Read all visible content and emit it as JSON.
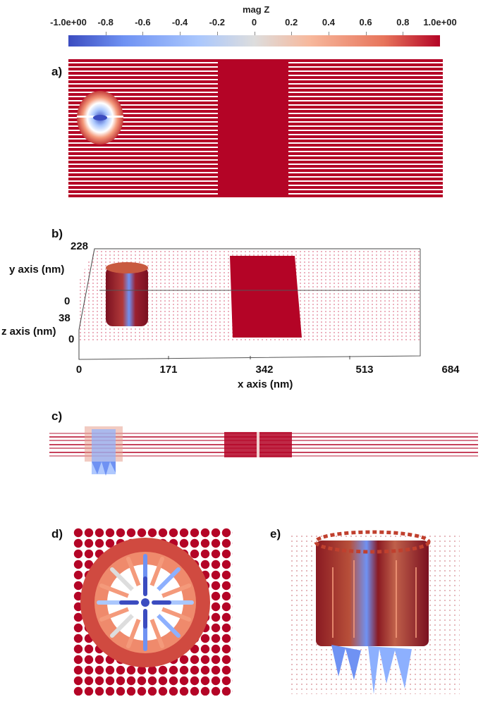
{
  "colorbar": {
    "title": "mag Z",
    "ticks": [
      "-1.0e+00",
      "-0.8",
      "-0.6",
      "-0.4",
      "-0.2",
      "0",
      "0.2",
      "0.4",
      "0.6",
      "0.8",
      "1.0e+00"
    ],
    "min": -1.0,
    "max": 1.0,
    "colors": [
      "#3b4cc0",
      "#8db0fe",
      "#dddddd",
      "#f49a7b",
      "#b40426"
    ]
  },
  "panels": {
    "a": {
      "label": "a)"
    },
    "b": {
      "label": "b)",
      "y_axis_label": "y axis (nm)",
      "z_axis_label": "z axis (nm)",
      "x_axis_label": "x axis (nm)",
      "y_ticks": [
        "228",
        "0"
      ],
      "z_ticks": [
        "38",
        "0"
      ],
      "x_ticks": [
        "0",
        "171",
        "342",
        "513",
        "684"
      ]
    },
    "c": {
      "label": "c)"
    },
    "d": {
      "label": "d)"
    },
    "e": {
      "label": "e)"
    }
  },
  "colors": {
    "domain_red": "#b40426",
    "light_red": "#d9607a",
    "core_blue": "#3b4cc0",
    "mid_blue": "#8db0fe"
  }
}
